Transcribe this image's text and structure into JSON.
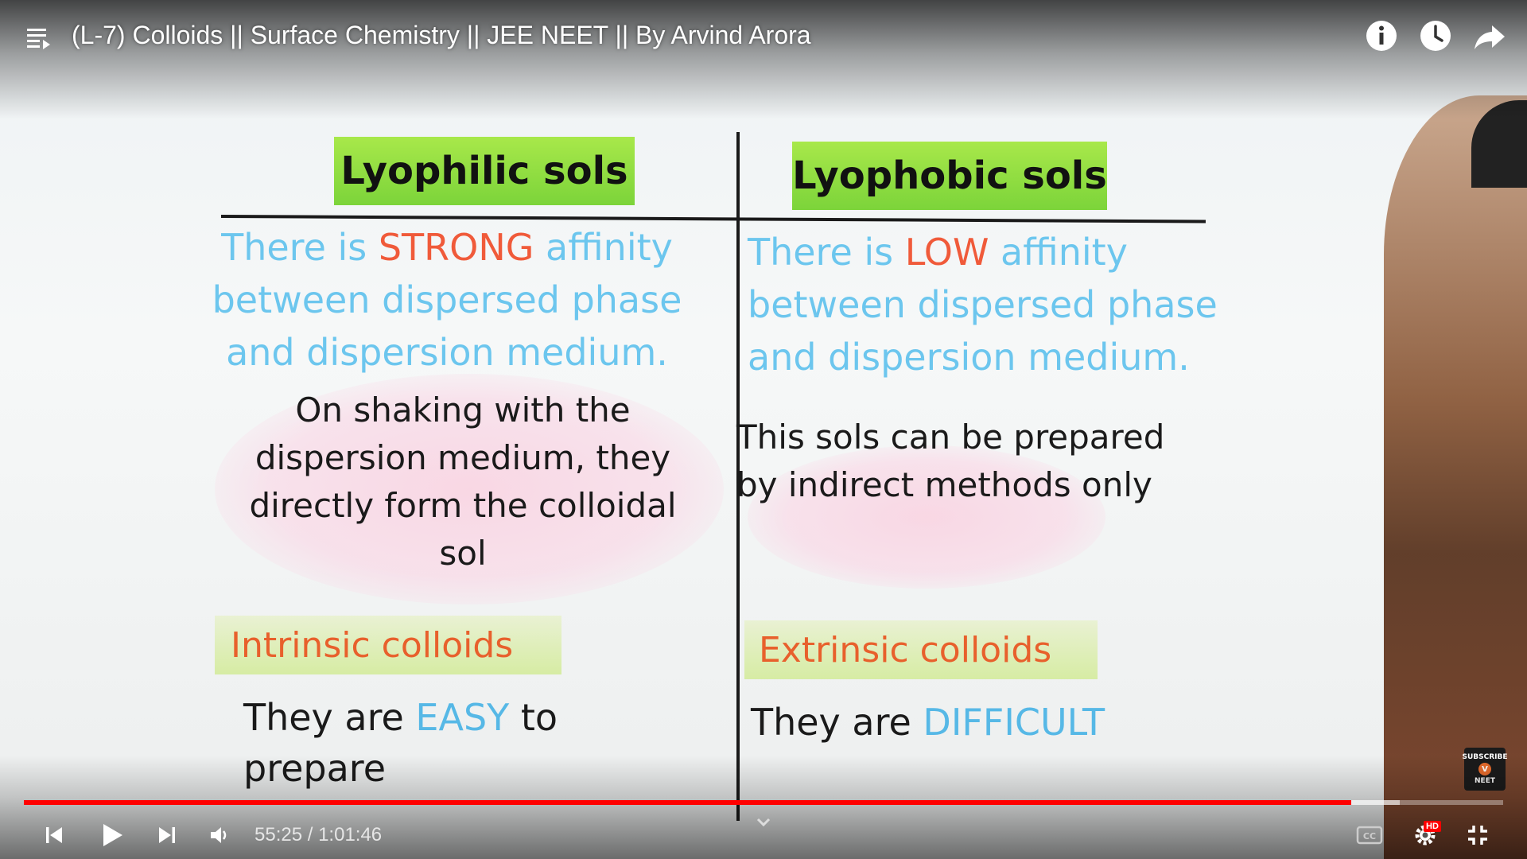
{
  "header": {
    "title": "(L-7) Colloids || Surface Chemistry || JEE NEET || By Arvind Arora",
    "icons": [
      "playlist-icon",
      "info-icon",
      "watch-later-icon",
      "share-icon"
    ]
  },
  "slide": {
    "left": {
      "heading": "Lyophilic sols",
      "affinity_pre": "There is ",
      "affinity_highlight": "STRONG",
      "affinity_post": " affinity",
      "affinity_line2": "between dispersed phase",
      "affinity_line3": "and dispersion medium.",
      "method_line1": "On shaking with the",
      "method_line2": "dispersion medium, they",
      "method_line3": "directly form the colloidal",
      "method_line4": "sol",
      "colloid_type": "Intrinsic colloids",
      "ease_pre": "They are ",
      "ease_highlight": "EASY",
      "ease_post": " to",
      "ease_line2": "prepare"
    },
    "right": {
      "heading": "Lyophobic sols",
      "affinity_pre": "There is ",
      "affinity_highlight": "LOW",
      "affinity_post": " affinity",
      "affinity_line2": "between dispersed phase",
      "affinity_line3": "and dispersion medium.",
      "method_line1": "This sols can be prepared",
      "method_line2": "by indirect methods only",
      "colloid_type": "Extrinsic colloids",
      "ease_pre": "They are ",
      "ease_highlight": "DIFFICULT"
    },
    "badge": {
      "line1": "SUBSCRIBE",
      "mark": "V",
      "line2": "NEET"
    },
    "colors": {
      "heading_bg": "#8fdc3e",
      "affinity_text": "#6cc6ee",
      "highlight_red": "#f05a3a",
      "colloid_text": "#e8602c",
      "ease_highlight": "#56b8e6"
    }
  },
  "player": {
    "current_time": "55:25",
    "separator": " / ",
    "duration": "1:01:46",
    "progress_fraction": 0.8971,
    "buffered_fraction": 0.93,
    "progress_color": "#ff0000",
    "quality_badge": "HD",
    "controls": [
      "previous-icon",
      "play-icon",
      "next-icon",
      "volume-icon",
      "chevron-down-icon",
      "captions-icon",
      "settings-icon",
      "exit-fullscreen-icon"
    ]
  }
}
